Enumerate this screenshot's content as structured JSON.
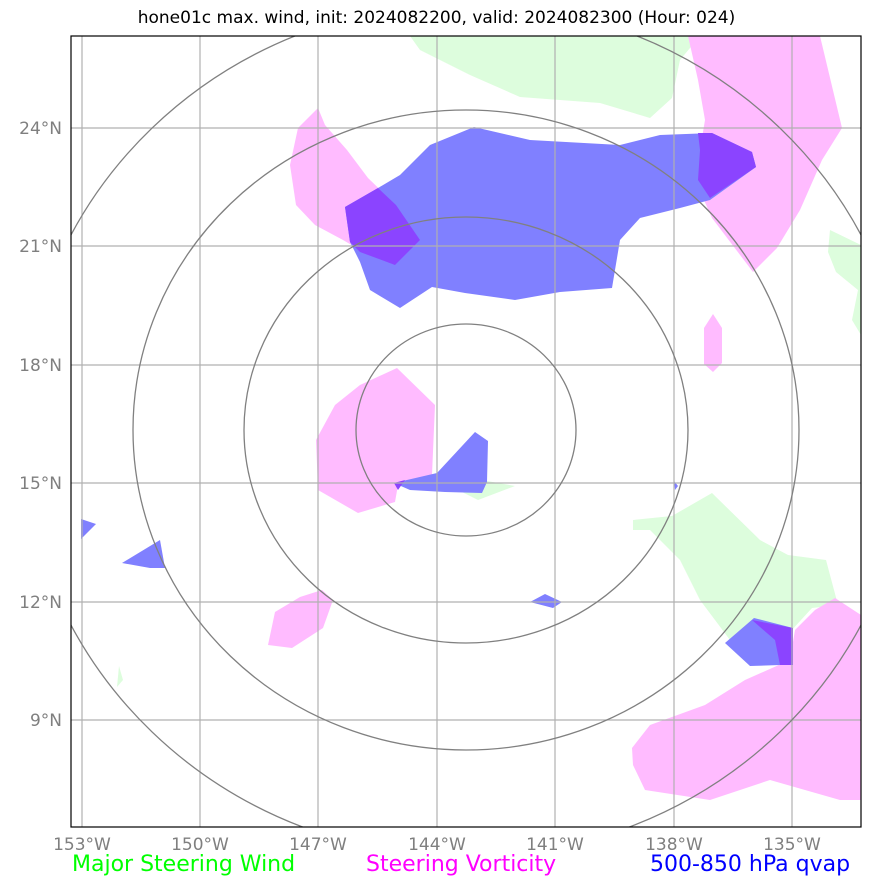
{
  "title": "hone01c max. wind, init: 2024082200, valid: 2024082300 (Hour: 024)",
  "lon_labels": [
    "153°W",
    "150°W",
    "147°W",
    "144°W",
    "141°W",
    "138°W",
    "135°W"
  ],
  "lat_labels": [
    "24°N",
    "21°N",
    "18°N",
    "15°N",
    "12°N",
    "9°N"
  ],
  "legend": {
    "wind": {
      "label": "Major Steering Wind",
      "color": "#00ff00"
    },
    "vorticity": {
      "label": "Steering Vorticity",
      "color": "#ff00ff"
    },
    "qvap": {
      "label": "500-850 hPa qvap",
      "color": "#0000ff"
    }
  },
  "colors": {
    "wind_fill": "#ddfddd",
    "vort_fill": "#ffbbff",
    "qvap_fill": "#8080ff",
    "overlap_fill": "#8b44ff",
    "grid": "#b0b0b0",
    "range_ring": "#808080"
  }
}
